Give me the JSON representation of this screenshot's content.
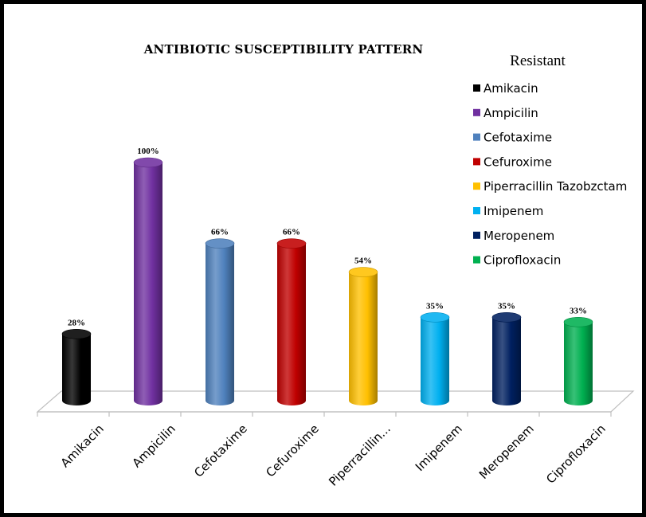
{
  "chart_data": {
    "type": "bar",
    "title": "ANTIBIOTIC SUSCEPTIBILITY PATTERN",
    "categories": [
      "Amikacin",
      "Ampicilin",
      "Cefotaxime",
      "Cefuroxime",
      "Piperracillin...",
      "Imipenem",
      "Meropenem",
      "Ciprofloxacin"
    ],
    "series": [
      {
        "name": "Resistant",
        "values": [
          28,
          100,
          66,
          66,
          54,
          35,
          35,
          33
        ],
        "data_labels": [
          "28%",
          "100%",
          "66%",
          "66%",
          "54%",
          "35%",
          "35%",
          "33%"
        ]
      }
    ],
    "legend_title": "Resistant",
    "legend_entries": [
      "Amikacin",
      "Ampicilin",
      "Cefotaxime",
      "Cefuroxime",
      "Piperracillin Tazobzctam",
      "Imipenem",
      "Meropenem",
      "Ciprofloxacin"
    ],
    "colors": [
      "#000000",
      "#7030a0",
      "#4f81bd",
      "#c00000",
      "#ffc000",
      "#00b0f0",
      "#002060",
      "#00b050"
    ],
    "ylim": [
      0,
      100
    ],
    "grid": false,
    "legend_position": "right",
    "style": "3d-cylinder"
  }
}
